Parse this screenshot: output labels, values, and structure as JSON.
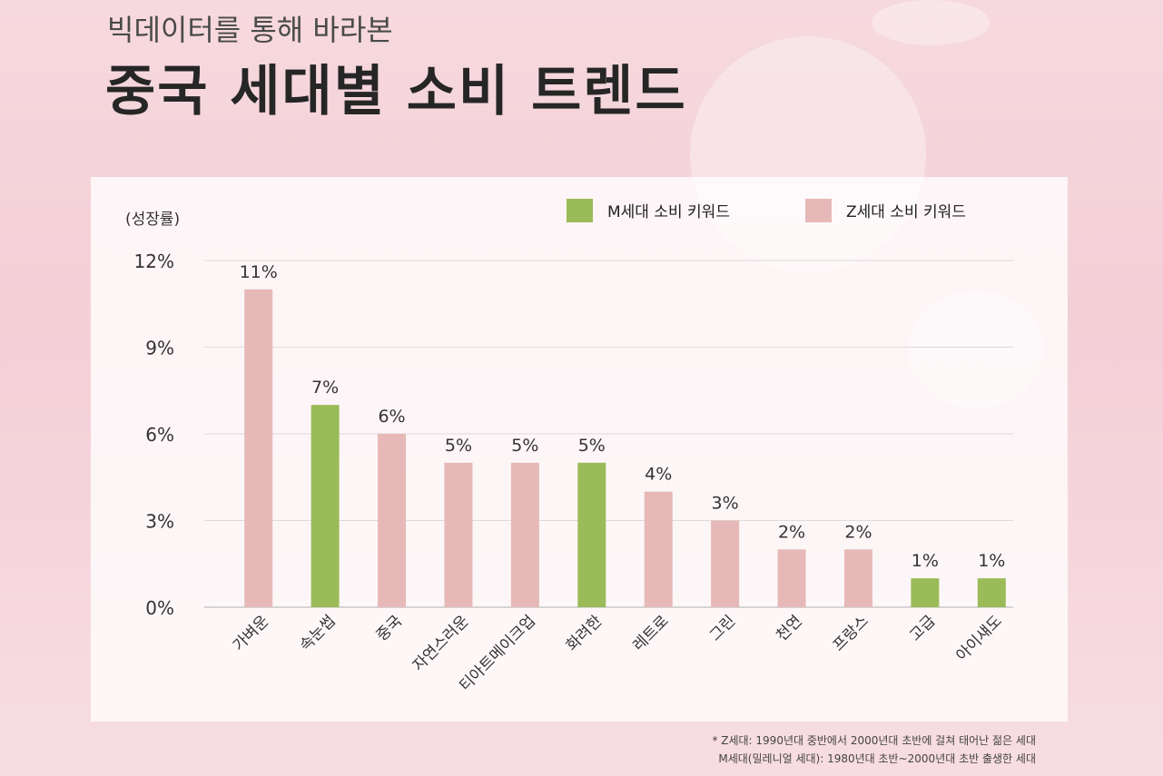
{
  "header": {
    "subtitle": "빅데이터를 통해 바라본",
    "title": "중국 세대별 소비 트렌드"
  },
  "chart_data": {
    "type": "bar",
    "ylabel": "(성장률)",
    "yticks": [
      "0%",
      "3%",
      "6%",
      "9%",
      "12%"
    ],
    "ylim": [
      0,
      12
    ],
    "grid": true,
    "legend_position": "top-right",
    "legend": [
      {
        "name": "M세대 소비 키워드",
        "color": "#9bbb59"
      },
      {
        "name": "Z세대 소비 키워드",
        "color": "#e6b9b8"
      }
    ],
    "categories": [
      "가벼운",
      "속눈썹",
      "중국",
      "자연스러운",
      "티아트메이크업",
      "화려한",
      "레트로",
      "그린",
      "천연",
      "프랑스",
      "고급",
      "아이섀도"
    ],
    "values": [
      11,
      7,
      6,
      5,
      5,
      5,
      4,
      3,
      2,
      2,
      1,
      1
    ],
    "value_labels": [
      "11%",
      "7%",
      "6%",
      "5%",
      "5%",
      "5%",
      "4%",
      "3%",
      "2%",
      "2%",
      "1%",
      "1%"
    ],
    "generation": [
      "Z",
      "M",
      "Z",
      "Z",
      "Z",
      "M",
      "Z",
      "Z",
      "Z",
      "Z",
      "M",
      "M"
    ]
  },
  "notes": {
    "line1": "* Z세대: 1990년대 중반에서 2000년대 초반에 걸쳐 태어난 젊은 세대",
    "line2": "M세대(밀레니얼 세대): 1980년대 초반~2000년대 초반 출생한 세대"
  },
  "colors": {
    "M": "#9bbb59",
    "Z": "#e6b9b8"
  }
}
